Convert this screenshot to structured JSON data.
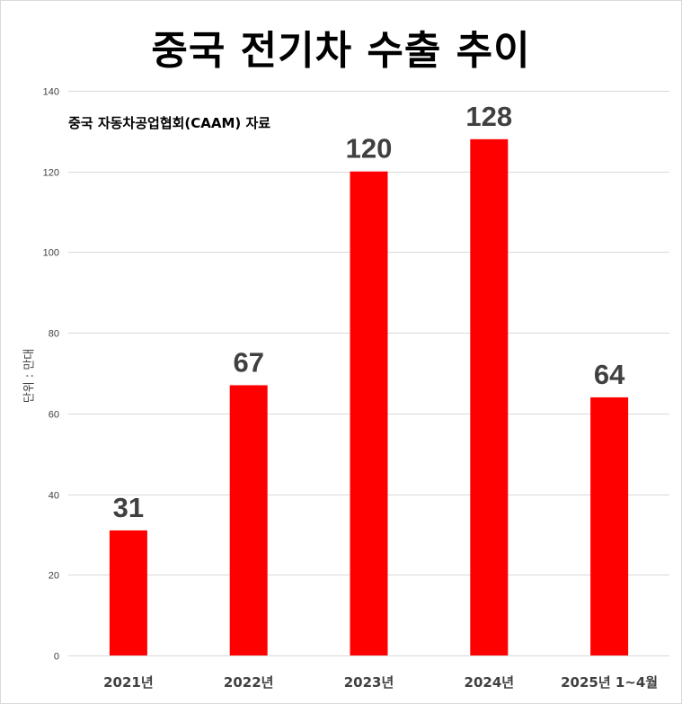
{
  "chart_data": {
    "type": "bar",
    "title": "중국 전기차 수출 추이",
    "subtitle": "중국 자동차공업협회(CAAM) 자료",
    "ylabel": "단위 : 만대",
    "xlabel": "",
    "categories": [
      "2021년",
      "2022년",
      "2023년",
      "2024년",
      "2025년 1~4월"
    ],
    "values": [
      31,
      67,
      120,
      128,
      64
    ],
    "data_labels": [
      "31",
      "67",
      "120",
      "128",
      "64"
    ],
    "ylim": [
      0,
      140
    ],
    "yticks": [
      0,
      20,
      40,
      60,
      80,
      100,
      120,
      140
    ],
    "yticklabels": [
      "0",
      "20",
      "40",
      "60",
      "80",
      "100",
      "120",
      "140"
    ],
    "grid": true,
    "legend": "none",
    "bar_color": "#ff0000"
  }
}
